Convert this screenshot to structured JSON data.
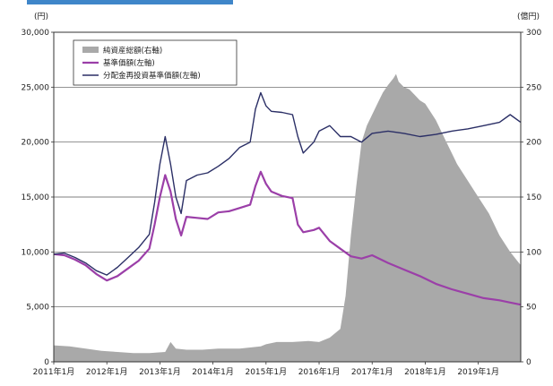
{
  "header": {
    "accent_color": "#3f86c9"
  },
  "chart_data": {
    "type": "line+area",
    "left_axis_unit": "(円)",
    "right_axis_unit": "(億円)",
    "left_ylim": [
      0,
      30000
    ],
    "right_ylim": [
      0,
      300
    ],
    "left_ticks": [
      "0",
      "5,000",
      "10,000",
      "15,000",
      "20,000",
      "25,000",
      "30,000"
    ],
    "right_ticks": [
      "0",
      "50",
      "100",
      "150",
      "200",
      "250",
      "300"
    ],
    "x_ticks": [
      "2011年1月",
      "2012年1月",
      "2013年1月",
      "2014年1月",
      "2015年1月",
      "2016年1月",
      "2017年1月",
      "2018年1月",
      "2019年1月"
    ],
    "x_range": [
      2011.0,
      2019.8
    ],
    "grid": true,
    "legend_position": "top-left",
    "series": [
      {
        "name": "純資産総額(右軸)",
        "kind": "area",
        "axis": "right",
        "color": "#a9a9a9",
        "x": [
          2011.0,
          2011.3,
          2011.6,
          2011.9,
          2012.2,
          2012.5,
          2012.8,
          2013.1,
          2013.2,
          2013.3,
          2013.5,
          2013.8,
          2014.1,
          2014.5,
          2014.9,
          2015.0,
          2015.2,
          2015.5,
          2015.8,
          2016.0,
          2016.2,
          2016.4,
          2016.5,
          2016.6,
          2016.7,
          2016.8,
          2016.9,
          2017.0,
          2017.1,
          2017.2,
          2017.3,
          2017.4,
          2017.45,
          2017.5,
          2017.6,
          2017.7,
          2017.8,
          2017.9,
          2018.0,
          2018.2,
          2018.4,
          2018.6,
          2018.8,
          2019.0,
          2019.2,
          2019.4,
          2019.6,
          2019.8
        ],
        "values": [
          15,
          14,
          12,
          10,
          9,
          8,
          8,
          9,
          18,
          12,
          11,
          11,
          12,
          12,
          14,
          16,
          18,
          18,
          19,
          18,
          22,
          30,
          60,
          115,
          160,
          200,
          215,
          225,
          235,
          245,
          252,
          258,
          262,
          255,
          250,
          248,
          243,
          238,
          235,
          220,
          200,
          180,
          165,
          150,
          135,
          115,
          100,
          88
        ]
      },
      {
        "name": "基準価額(左軸)",
        "kind": "line",
        "axis": "left",
        "color": "#9b3fa8",
        "x": [
          2011.0,
          2011.2,
          2011.4,
          2011.6,
          2011.8,
          2012.0,
          2012.2,
          2012.4,
          2012.6,
          2012.8,
          2012.9,
          2013.0,
          2013.1,
          2013.2,
          2013.3,
          2013.4,
          2013.5,
          2013.7,
          2013.9,
          2014.1,
          2014.3,
          2014.5,
          2014.7,
          2014.8,
          2014.9,
          2015.0,
          2015.1,
          2015.3,
          2015.5,
          2015.6,
          2015.7,
          2015.9,
          2016.0,
          2016.2,
          2016.4,
          2016.6,
          2016.8,
          2017.0,
          2017.3,
          2017.6,
          2017.9,
          2018.2,
          2018.5,
          2018.8,
          2019.1,
          2019.4,
          2019.6,
          2019.8
        ],
        "values": [
          9800,
          9700,
          9300,
          8800,
          8000,
          7400,
          7800,
          8500,
          9200,
          10300,
          12500,
          15000,
          17000,
          15500,
          13000,
          11500,
          13200,
          13100,
          13000,
          13600,
          13700,
          14000,
          14300,
          16000,
          17300,
          16200,
          15500,
          15100,
          14900,
          12500,
          11800,
          12000,
          12200,
          11000,
          10300,
          9600,
          9400,
          9700,
          9000,
          8400,
          7800,
          7100,
          6600,
          6200,
          5800,
          5600,
          5400,
          5200
        ]
      },
      {
        "name": "分配金再投資基準価額(左軸)",
        "kind": "line",
        "axis": "left",
        "color": "#2b2f66",
        "x": [
          2011.0,
          2011.2,
          2011.4,
          2011.6,
          2011.8,
          2012.0,
          2012.2,
          2012.4,
          2012.6,
          2012.8,
          2012.9,
          2013.0,
          2013.1,
          2013.2,
          2013.3,
          2013.4,
          2013.5,
          2013.7,
          2013.9,
          2014.1,
          2014.3,
          2014.5,
          2014.7,
          2014.8,
          2014.9,
          2015.0,
          2015.1,
          2015.3,
          2015.5,
          2015.6,
          2015.7,
          2015.9,
          2016.0,
          2016.2,
          2016.4,
          2016.6,
          2016.8,
          2017.0,
          2017.3,
          2017.6,
          2017.9,
          2018.2,
          2018.5,
          2018.8,
          2019.1,
          2019.4,
          2019.6,
          2019.8
        ],
        "values": [
          9800,
          9900,
          9500,
          9000,
          8300,
          7900,
          8600,
          9500,
          10400,
          11600,
          14500,
          18000,
          20500,
          18000,
          15000,
          13500,
          16500,
          17000,
          17200,
          17800,
          18500,
          19500,
          20000,
          23000,
          24500,
          23300,
          22800,
          22700,
          22500,
          20500,
          19000,
          20000,
          21000,
          21500,
          20500,
          20500,
          20000,
          20800,
          21000,
          20800,
          20500,
          20700,
          21000,
          21200,
          21500,
          21800,
          22500,
          21800
        ]
      }
    ]
  }
}
